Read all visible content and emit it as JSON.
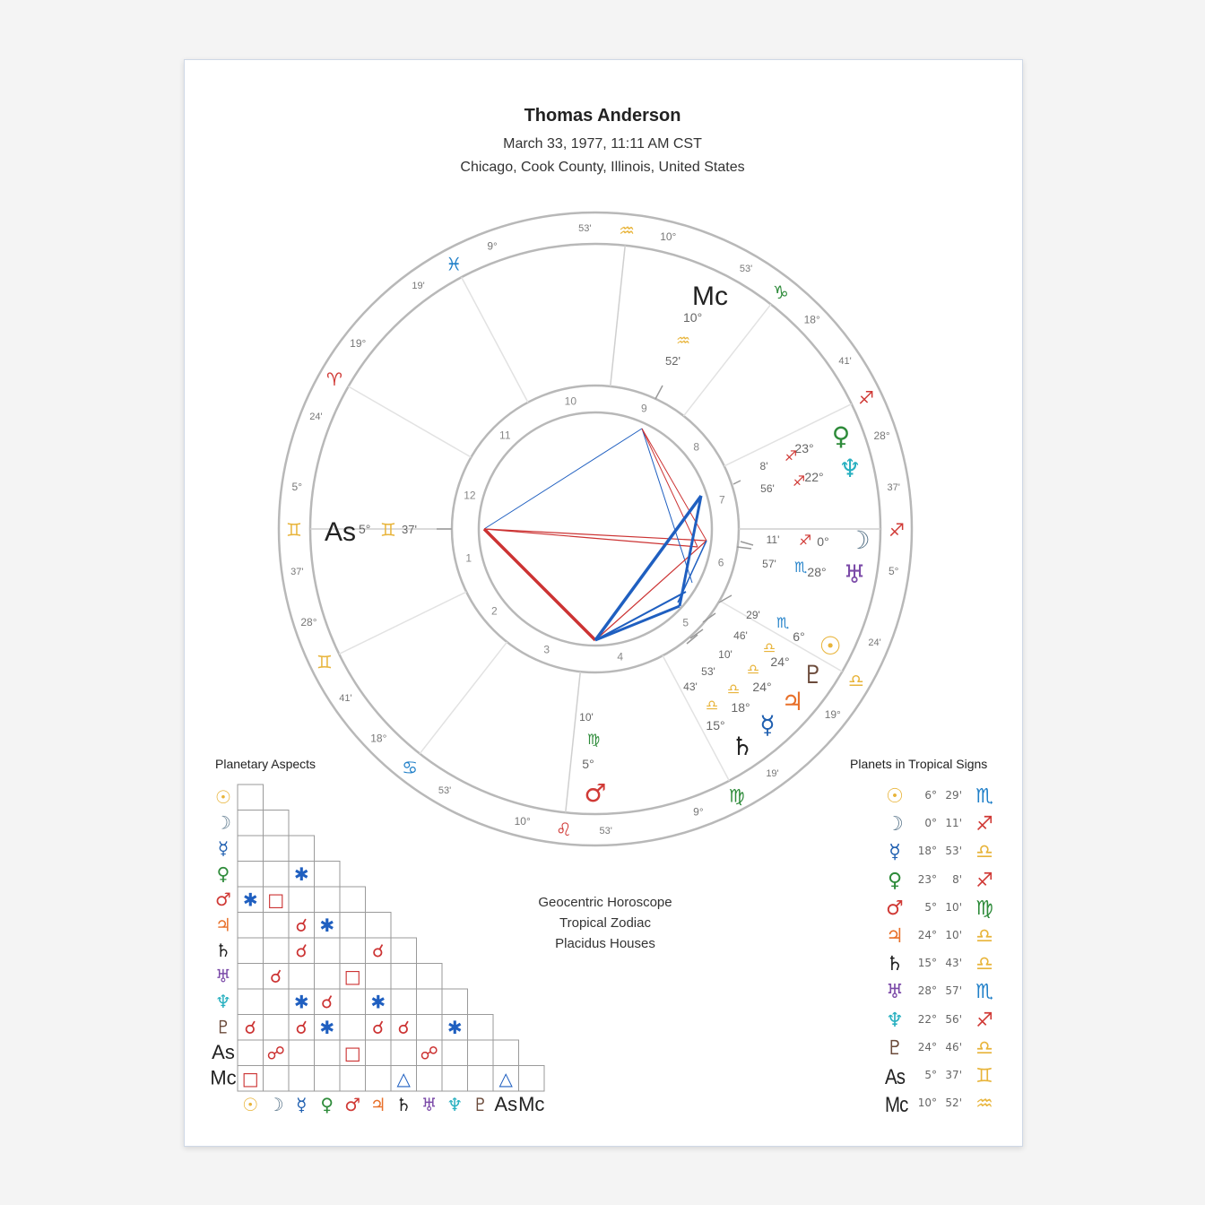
{
  "header": {
    "name": "Thomas Anderson",
    "datetime": "March 33, 1977, 11:11 AM CST",
    "location": "Chicago, Cook County, Illinois, United States"
  },
  "info": [
    "Geocentric Horoscope",
    "Tropical Zodiac",
    "Placidus Houses"
  ],
  "aspects_title": "Planetary Aspects",
  "table_title": "Planets in Tropical Signs",
  "colors": {
    "sun": "#e8b43a",
    "moon": "#5f7a8e",
    "mercury": "#1f5fb0",
    "venus": "#2e8b3a",
    "mars": "#d03a36",
    "jupiter": "#e8702a",
    "saturn": "#222222",
    "uranus": "#7b4aa8",
    "neptune": "#28b0c0",
    "pluto": "#6b4a3a",
    "as": "#222222",
    "mc": "#222222",
    "aries": "#d03a36",
    "gemini": "#e8b43a",
    "cancer": "#1f7fc8",
    "leo": "#d03a36",
    "virgo": "#2e8b3a",
    "libra": "#e8b43a",
    "scorpio": "#1f7fc8",
    "sagittarius": "#d03a36",
    "capricorn": "#2e8b3a",
    "aquarius": "#e8b43a",
    "pisces": "#1f7fc8",
    "aspect_blue": "#1f5fc0",
    "aspect_red": "#cc3333"
  },
  "planet_glyphs": {
    "sun": "☉",
    "moon": "☽",
    "mercury": "☿",
    "venus": "♀",
    "mars": "♂",
    "jupiter": "♃",
    "saturn": "♄",
    "uranus": "♅",
    "neptune": "♆",
    "pluto": "♇",
    "as": "As",
    "mc": "Mc"
  },
  "sign_glyphs": {
    "aries": "♈",
    "gemini": "♊",
    "cancer": "♋",
    "leo": "♌",
    "virgo": "♍",
    "libra": "♎",
    "scorpio": "♏",
    "sagittarius": "♐",
    "capricorn": "♑",
    "aquarius": "♒",
    "pisces": "♓"
  },
  "house_numbers": [
    "1",
    "2",
    "3",
    "4",
    "5",
    "6",
    "7",
    "8",
    "9",
    "10",
    "11",
    "12"
  ],
  "cusps": [
    {
      "deg": "5°",
      "sign": "gemini",
      "min": "37'"
    },
    {
      "deg": "28°",
      "sign": "gemini",
      "min": "41'"
    },
    {
      "deg": "18°",
      "sign": "cancer",
      "min": "53'"
    },
    {
      "deg": "10°",
      "sign": "leo",
      "min": "53'"
    },
    {
      "deg": "9°",
      "sign": "virgo",
      "min": "19'"
    },
    {
      "deg": "19°",
      "sign": "libra",
      "min": "24'"
    },
    {
      "deg": "5°",
      "sign": "sagittarius",
      "min": "37'"
    },
    {
      "deg": "28°",
      "sign": "sagittarius",
      "min": "41'"
    },
    {
      "deg": "18°",
      "sign": "capricorn",
      "min": "53'"
    },
    {
      "deg": "10°",
      "sign": "aquarius",
      "min": "53'"
    },
    {
      "deg": "9°",
      "sign": "pisces",
      "min": "19'"
    },
    {
      "deg": "19°",
      "sign": "aries",
      "min": "24'"
    }
  ],
  "angles": {
    "as": {
      "label": "As",
      "deg": "5°",
      "sign": "gemini",
      "min": "37'"
    },
    "mc": {
      "label": "Mc",
      "deg": "10°",
      "sign": "aquarius",
      "min": "52'"
    }
  },
  "placements": [
    {
      "key": "venus",
      "deg": "23°",
      "sign": "sagittarius",
      "min": "8'"
    },
    {
      "key": "neptune",
      "deg": "22°",
      "sign": "sagittarius",
      "min": "56'"
    },
    {
      "key": "moon",
      "deg": "0°",
      "sign": "sagittarius",
      "min": "11'"
    },
    {
      "key": "uranus",
      "deg": "28°",
      "sign": "scorpio",
      "min": "57'"
    },
    {
      "key": "sun",
      "deg": "6°",
      "sign": "scorpio",
      "min": "29'"
    },
    {
      "key": "pluto",
      "deg": "24°",
      "sign": "libra",
      "min": "46'"
    },
    {
      "key": "jupiter",
      "deg": "24°",
      "sign": "libra",
      "min": "10'"
    },
    {
      "key": "mercury",
      "deg": "18°",
      "sign": "libra",
      "min": "53'"
    },
    {
      "key": "saturn",
      "deg": "15°",
      "sign": "libra",
      "min": "43'"
    },
    {
      "key": "mars",
      "deg": "5°",
      "sign": "virgo",
      "min": "10'"
    }
  ],
  "table": [
    {
      "planet": "sun",
      "deg": "6°",
      "min": "29'",
      "sign": "scorpio"
    },
    {
      "planet": "moon",
      "deg": "0°",
      "min": "11'",
      "sign": "sagittarius"
    },
    {
      "planet": "mercury",
      "deg": "18°",
      "min": "53'",
      "sign": "libra"
    },
    {
      "planet": "venus",
      "deg": "23°",
      "min": "8'",
      "sign": "sagittarius"
    },
    {
      "planet": "mars",
      "deg": "5°",
      "min": "10'",
      "sign": "virgo"
    },
    {
      "planet": "jupiter",
      "deg": "24°",
      "min": "10'",
      "sign": "libra"
    },
    {
      "planet": "saturn",
      "deg": "15°",
      "min": "43'",
      "sign": "libra"
    },
    {
      "planet": "uranus",
      "deg": "28°",
      "min": "57'",
      "sign": "scorpio"
    },
    {
      "planet": "neptune",
      "deg": "22°",
      "min": "56'",
      "sign": "sagittarius"
    },
    {
      "planet": "pluto",
      "deg": "24°",
      "min": "46'",
      "sign": "libra"
    },
    {
      "planet": "as",
      "deg": "5°",
      "min": "37'",
      "sign": "gemini"
    },
    {
      "planet": "mc",
      "deg": "10°",
      "min": "52'",
      "sign": "aquarius"
    }
  ],
  "grid_order": [
    "sun",
    "moon",
    "mercury",
    "venus",
    "mars",
    "jupiter",
    "saturn",
    "uranus",
    "neptune",
    "pluto",
    "as",
    "mc"
  ],
  "aspects": [
    {
      "row": 3,
      "col": 2,
      "type": "sextile"
    },
    {
      "row": 4,
      "col": 0,
      "type": "sextile"
    },
    {
      "row": 4,
      "col": 1,
      "type": "square"
    },
    {
      "row": 5,
      "col": 2,
      "type": "conjunction"
    },
    {
      "row": 5,
      "col": 3,
      "type": "sextile"
    },
    {
      "row": 6,
      "col": 2,
      "type": "conjunction"
    },
    {
      "row": 6,
      "col": 5,
      "type": "conjunction"
    },
    {
      "row": 7,
      "col": 1,
      "type": "conjunction"
    },
    {
      "row": 7,
      "col": 4,
      "type": "square"
    },
    {
      "row": 8,
      "col": 2,
      "type": "sextile"
    },
    {
      "row": 8,
      "col": 3,
      "type": "conjunction"
    },
    {
      "row": 8,
      "col": 5,
      "type": "sextile"
    },
    {
      "row": 9,
      "col": 0,
      "type": "conjunction"
    },
    {
      "row": 9,
      "col": 2,
      "type": "conjunction"
    },
    {
      "row": 9,
      "col": 3,
      "type": "sextile"
    },
    {
      "row": 9,
      "col": 5,
      "type": "conjunction"
    },
    {
      "row": 9,
      "col": 6,
      "type": "conjunction"
    },
    {
      "row": 9,
      "col": 8,
      "type": "sextile"
    },
    {
      "row": 10,
      "col": 1,
      "type": "opposition"
    },
    {
      "row": 10,
      "col": 4,
      "type": "square"
    },
    {
      "row": 10,
      "col": 7,
      "type": "opposition"
    },
    {
      "row": 11,
      "col": 0,
      "type": "square"
    },
    {
      "row": 11,
      "col": 6,
      "type": "trine"
    },
    {
      "row": 11,
      "col": 10,
      "type": "trine"
    }
  ],
  "aspect_glyphs": {
    "sextile": "✱",
    "square": "□",
    "conjunction": "☌",
    "opposition": "☍",
    "trine": "△"
  }
}
